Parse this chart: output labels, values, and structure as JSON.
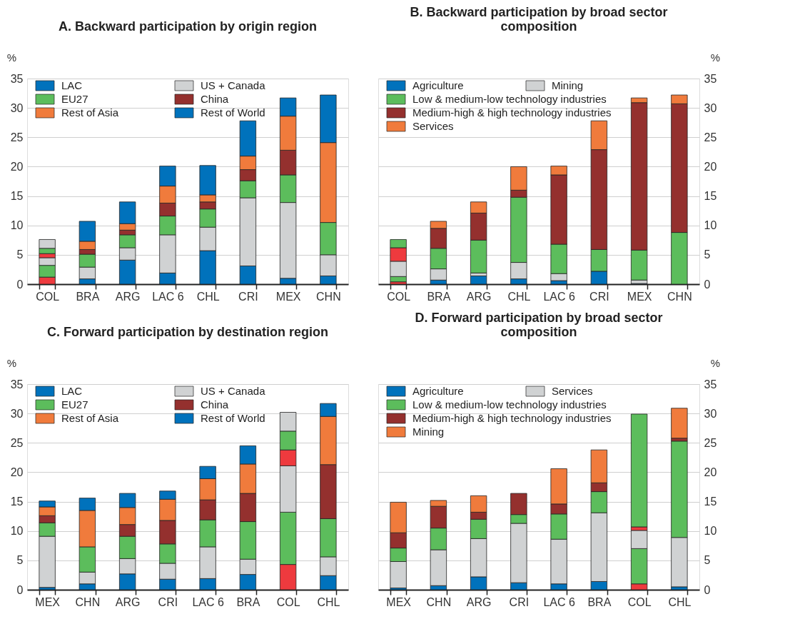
{
  "chart_data": [
    {
      "type": "bar",
      "title": "A. Backward participation by origin region",
      "ylabel": "%",
      "stacked": true,
      "categories": [
        "COL",
        "BRA",
        "ARG",
        "LAC 6",
        "CHL",
        "CRI",
        "MEX",
        "CHN"
      ],
      "ylim": [
        0,
        35
      ],
      "yticks": [
        0,
        5,
        10,
        15,
        20,
        25,
        30,
        35
      ],
      "grid": "y",
      "legend": "top left",
      "series": [
        {
          "name": "LAC",
          "color": "#0072bc",
          "colors": [
            "#ee3a3e",
            "#0072bc",
            "#0072bc",
            "#0072bc",
            "#0072bc",
            "#0072bc",
            "#0072bc",
            "#0072bc"
          ],
          "values": [
            1.2,
            0.9,
            4.1,
            1.9,
            5.7,
            3.1,
            1.0,
            1.4
          ]
        },
        {
          "name": "US + Canada",
          "color": "#d0d2d3",
          "colors": [
            "#5cbd5c",
            "#d0d2d3",
            "#d0d2d3",
            "#d0d2d3",
            "#d0d2d3",
            "#d0d2d3",
            "#d0d2d3",
            "#d0d2d3"
          ],
          "values": [
            2.0,
            2.0,
            2.1,
            6.5,
            4.0,
            11.6,
            12.9,
            3.6
          ]
        },
        {
          "name": "EU27",
          "color": "#5cbd5c",
          "colors": [
            "#d0d2d3",
            "#5cbd5c",
            "#5cbd5c",
            "#5cbd5c",
            "#5cbd5c",
            "#5cbd5c",
            "#5cbd5c",
            "#5cbd5c"
          ],
          "values": [
            1.3,
            2.2,
            2.2,
            3.2,
            3.1,
            2.9,
            4.7,
            5.5
          ]
        },
        {
          "name": "China",
          "color": "#94302e",
          "colors": [
            "#ee3a3e",
            "#94302e",
            "#94302e",
            "#94302e",
            "#94302e",
            "#94302e",
            "#94302e",
            "#94302e"
          ],
          "values": [
            0.7,
            0.8,
            0.8,
            2.2,
            1.2,
            1.9,
            4.2,
            0
          ]
        },
        {
          "name": "Rest of Asia",
          "color": "#f07b3c",
          "colors": [
            "#5cbd5c",
            "#f07b3c",
            "#f07b3c",
            "#f07b3c",
            "#f07b3c",
            "#f07b3c",
            "#f07b3c",
            "#f07b3c"
          ],
          "values": [
            0.9,
            1.4,
            1.1,
            2.9,
            1.2,
            2.3,
            5.8,
            13.6
          ]
        },
        {
          "name": "Rest of World",
          "color": "#0072bc",
          "colors": [
            "#d0d2d3",
            "#0072bc",
            "#0072bc",
            "#0072bc",
            "#0072bc",
            "#0072bc",
            "#0072bc",
            "#0072bc"
          ],
          "values": [
            1.5,
            3.4,
            3.7,
            3.4,
            5.0,
            6.0,
            3.1,
            8.1
          ]
        }
      ]
    },
    {
      "type": "bar",
      "title": "B. Backward participation by broad sector composition",
      "y2label": "%",
      "stacked": true,
      "categories": [
        "COL",
        "BRA",
        "ARG",
        "CHL",
        "LAC 6",
        "CRI",
        "MEX",
        "CHN"
      ],
      "y2lim": [
        0,
        35
      ],
      "y2ticks": [
        0,
        5,
        10,
        15,
        20,
        25,
        30,
        35
      ],
      "grid": "y",
      "legend": "top left",
      "series": [
        {
          "name": "Agriculture",
          "axis": "y2",
          "color": "#0072bc",
          "colors": [
            "#ee3a3e",
            "#0072bc",
            "#0072bc",
            "#0072bc",
            "#0072bc",
            "#0072bc",
            "#0072bc",
            "#0072bc"
          ],
          "values": [
            0.4,
            0.7,
            1.4,
            0.9,
            0.6,
            2.2,
            0.1,
            0
          ]
        },
        {
          "name": "Mining",
          "axis": "y2",
          "color": "#d0d2d3",
          "colors": [
            "#5cbd5c",
            "#d0d2d3",
            "#d0d2d3",
            "#d0d2d3",
            "#d0d2d3",
            "#d0d2d3",
            "#d0d2d3",
            "#d0d2d3"
          ],
          "values": [
            0.9,
            1.9,
            0.5,
            2.8,
            1.2,
            0,
            0.6,
            0
          ]
        },
        {
          "name": "Low & medium-low technology industries",
          "axis": "y2",
          "color": "#5cbd5c",
          "colors": [
            "#d0d2d3",
            "#5cbd5c",
            "#5cbd5c",
            "#5cbd5c",
            "#5cbd5c",
            "#5cbd5c",
            "#5cbd5c",
            "#5cbd5c"
          ],
          "values": [
            2.6,
            3.5,
            5.6,
            11.1,
            5.0,
            3.7,
            5.1,
            8.8
          ]
        },
        {
          "name": "Medium-high & high technology industries",
          "axis": "y2",
          "color": "#94302e",
          "colors": [
            "#ee3a3e",
            "#94302e",
            "#94302e",
            "#94302e",
            "#94302e",
            "#94302e",
            "#94302e",
            "#94302e"
          ],
          "values": [
            2.3,
            3.4,
            4.6,
            1.2,
            11.8,
            17.0,
            25.1,
            21.9
          ]
        },
        {
          "name": "Services",
          "axis": "y2",
          "color": "#f07b3c",
          "colors": [
            "#5cbd5c",
            "#f07b3c",
            "#f07b3c",
            "#f07b3c",
            "#f07b3c",
            "#f07b3c",
            "#f07b3c",
            "#f07b3c"
          ],
          "values": [
            1.4,
            1.2,
            1.9,
            4.0,
            1.5,
            4.9,
            0.8,
            1.5
          ]
        }
      ]
    },
    {
      "type": "bar",
      "title": "C. Forward participation by destination region",
      "ylabel": "%",
      "stacked": true,
      "categories": [
        "MEX",
        "CHN",
        "ARG",
        "CRI",
        "LAC 6",
        "BRA",
        "COL",
        "CHL"
      ],
      "ylim": [
        0,
        35
      ],
      "yticks": [
        0,
        5,
        10,
        15,
        20,
        25,
        30,
        35
      ],
      "grid": "y",
      "legend": "top left",
      "series": [
        {
          "name": "LAC",
          "color": "#0072bc",
          "colors": [
            "#0072bc",
            "#0072bc",
            "#0072bc",
            "#0072bc",
            "#0072bc",
            "#0072bc",
            "#ee3a3e",
            "#0072bc"
          ],
          "values": [
            0.4,
            1.0,
            2.7,
            1.8,
            1.9,
            2.6,
            4.3,
            2.4
          ]
        },
        {
          "name": "US + Canada",
          "color": "#d0d2d3",
          "colors": [
            "#d0d2d3",
            "#d0d2d3",
            "#d0d2d3",
            "#d0d2d3",
            "#d0d2d3",
            "#d0d2d3",
            "#5cbd5c",
            "#d0d2d3"
          ],
          "values": [
            8.7,
            2.0,
            2.6,
            2.7,
            5.4,
            2.6,
            8.9,
            3.2
          ]
        },
        {
          "name": "EU27",
          "color": "#5cbd5c",
          "colors": [
            "#5cbd5c",
            "#5cbd5c",
            "#5cbd5c",
            "#5cbd5c",
            "#5cbd5c",
            "#5cbd5c",
            "#d0d2d3",
            "#5cbd5c"
          ],
          "values": [
            2.3,
            4.3,
            3.8,
            3.3,
            4.6,
            6.4,
            7.9,
            6.5
          ]
        },
        {
          "name": "China",
          "color": "#94302e",
          "colors": [
            "#94302e",
            "#94302e",
            "#94302e",
            "#94302e",
            "#94302e",
            "#94302e",
            "#ee3a3e",
            "#94302e"
          ],
          "values": [
            1.2,
            0,
            2.0,
            4.0,
            3.4,
            4.8,
            2.7,
            9.2
          ]
        },
        {
          "name": "Rest of Asia",
          "color": "#f07b3c",
          "colors": [
            "#f07b3c",
            "#f07b3c",
            "#f07b3c",
            "#f07b3c",
            "#f07b3c",
            "#f07b3c",
            "#5cbd5c",
            "#f07b3c"
          ],
          "values": [
            1.5,
            6.2,
            2.9,
            3.6,
            3.6,
            5.0,
            3.2,
            8.2
          ]
        },
        {
          "name": "Rest of World",
          "color": "#0072bc",
          "colors": [
            "#0072bc",
            "#0072bc",
            "#0072bc",
            "#0072bc",
            "#0072bc",
            "#0072bc",
            "#d0d2d3",
            "#0072bc"
          ],
          "values": [
            1.0,
            2.1,
            2.4,
            1.4,
            2.1,
            3.1,
            3.2,
            2.2
          ]
        }
      ]
    },
    {
      "type": "bar",
      "title": "D. Forward participation by broad sector composition",
      "y2label": "%",
      "stacked": true,
      "categories": [
        "MEX",
        "CHN",
        "ARG",
        "CRI",
        "LAC 6",
        "BRA",
        "COL",
        "CHL"
      ],
      "y2lim": [
        0,
        35
      ],
      "y2ticks": [
        0,
        5,
        10,
        15,
        20,
        25,
        30,
        35
      ],
      "grid": "y",
      "legend": "top left",
      "series": [
        {
          "name": "Agriculture",
          "axis": "y2",
          "color": "#0072bc",
          "colors": [
            "#0072bc",
            "#0072bc",
            "#0072bc",
            "#0072bc",
            "#0072bc",
            "#0072bc",
            "#ee3a3e",
            "#0072bc"
          ],
          "values": [
            0.3,
            0.7,
            2.2,
            1.2,
            1.0,
            1.4,
            1.0,
            0.5
          ]
        },
        {
          "name": "Services",
          "axis": "y2",
          "color": "#d0d2d3",
          "colors": [
            "#d0d2d3",
            "#d0d2d3",
            "#d0d2d3",
            "#d0d2d3",
            "#d0d2d3",
            "#d0d2d3",
            "#5cbd5c",
            "#d0d2d3"
          ],
          "values": [
            4.5,
            6.1,
            6.5,
            10.1,
            7.6,
            11.7,
            6.0,
            8.4
          ]
        },
        {
          "name": "Low & medium-low technology industries",
          "axis": "y2",
          "color": "#5cbd5c",
          "colors": [
            "#5cbd5c",
            "#5cbd5c",
            "#5cbd5c",
            "#5cbd5c",
            "#5cbd5c",
            "#5cbd5c",
            "#d0d2d3",
            "#5cbd5c"
          ],
          "values": [
            2.3,
            3.7,
            3.3,
            1.5,
            4.3,
            3.6,
            3.1,
            16.4
          ]
        },
        {
          "name": "Medium-high & high technology industries",
          "axis": "y2",
          "color": "#94302e",
          "colors": [
            "#94302e",
            "#94302e",
            "#94302e",
            "#94302e",
            "#94302e",
            "#94302e",
            "#ee3a3e",
            "#94302e"
          ],
          "values": [
            2.6,
            3.7,
            1.2,
            3.6,
            1.7,
            1.5,
            0.6,
            0.5
          ]
        },
        {
          "name": "Mining",
          "axis": "y2",
          "color": "#f07b3c",
          "colors": [
            "#f07b3c",
            "#f07b3c",
            "#f07b3c",
            "#f07b3c",
            "#f07b3c",
            "#f07b3c",
            "#5cbd5c",
            "#f07b3c"
          ],
          "values": [
            5.2,
            1.0,
            2.8,
            0,
            6.0,
            5.6,
            19.2,
            5.1
          ]
        }
      ]
    }
  ]
}
